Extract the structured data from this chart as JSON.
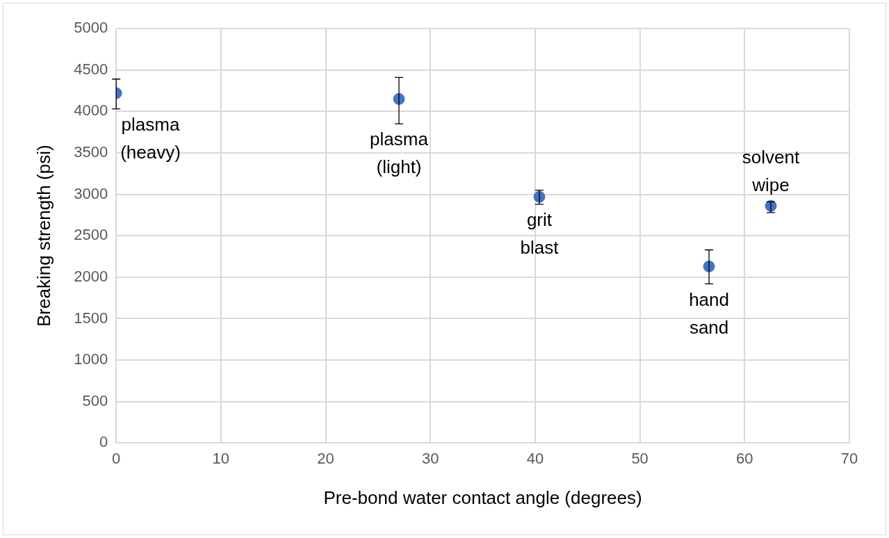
{
  "chart_data": {
    "type": "scatter",
    "xlabel": "Pre-bond water contact angle (degrees)",
    "ylabel": "Breaking strength (psi)",
    "x": [
      0,
      27,
      40.4,
      56.6,
      62.5
    ],
    "values": [
      4220,
      4150,
      2970,
      2130,
      2860
    ],
    "errors": [
      [
        4030,
        4390
      ],
      [
        3850,
        4410
      ],
      [
        2880,
        3050
      ],
      [
        1920,
        2330
      ],
      [
        2780,
        2910
      ]
    ],
    "color": "#4472c4",
    "marker": "circle",
    "grid": true,
    "legend": false,
    "xlim": [
      0,
      70
    ],
    "xticks": [
      0,
      10,
      20,
      30,
      40,
      50,
      60,
      70
    ],
    "ylim": [
      0,
      5000
    ],
    "yticks": [
      0,
      500,
      1000,
      1500,
      2000,
      2500,
      3000,
      3500,
      4000,
      4500,
      5000
    ],
    "annotations": [
      {
        "text": "plasma\n(heavy)",
        "x": 0,
        "y": 4220
      },
      {
        "text": "plasma\n(light)",
        "x": 27,
        "y": 4150
      },
      {
        "text": "grit\nblast",
        "x": 40.4,
        "y": 2970
      },
      {
        "text": "hand\nsand",
        "x": 56.6,
        "y": 2130
      },
      {
        "text": "solvent\nwipe",
        "x": 62.5,
        "y": 2860
      }
    ]
  }
}
